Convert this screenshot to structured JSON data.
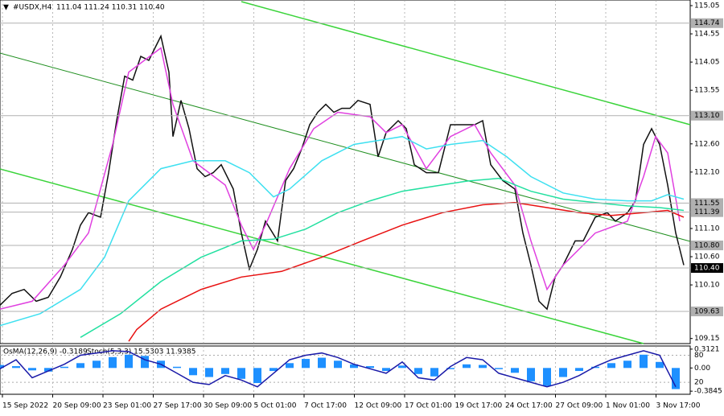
{
  "chart_data": [
    {
      "type": "line",
      "title": "#USDX,H4",
      "subtitle": "111.04 111.24 110.31 110.40",
      "xlim": [
        0,
        171.6
      ],
      "xticks": [
        {
          "value": 0.6,
          "label": "15 Sep 2022"
        },
        {
          "value": 13.1,
          "label": "20 Sep 09:00"
        },
        {
          "value": 25.6,
          "label": "23 Sep 01:00"
        },
        {
          "value": 38.1,
          "label": "27 Sep 17:00"
        },
        {
          "value": 50.6,
          "label": "30 Sep 09:00"
        },
        {
          "value": 63.1,
          "label": "5 Oct 01:00"
        },
        {
          "value": 75.6,
          "label": "7 Oct 17:00"
        },
        {
          "value": 88.1,
          "label": "12 Oct 09:00"
        },
        {
          "value": 100.6,
          "label": "17 Oct 01:00"
        },
        {
          "value": 113.1,
          "label": "19 Oct 17:00"
        },
        {
          "value": 125.6,
          "label": "24 Oct 17:00"
        },
        {
          "value": 138.1,
          "label": "27 Oct 09:00"
        },
        {
          "value": 150.6,
          "label": "1 Nov 01:00"
        },
        {
          "value": 163.1,
          "label": "3 Nov 17:00"
        }
      ],
      "grid": true,
      "ylim": [
        109.06,
        115.15
      ],
      "yticks": [
        115.05,
        114.55,
        114.05,
        113.55,
        {
          "value": 112.6,
          "label": "112.60"
        },
        {
          "value": 112.1,
          "label": "112.10"
        },
        {
          "value": 111.1,
          "label": "111.10"
        },
        {
          "value": 110.6,
          "label": "110.60"
        },
        {
          "value": 110.1,
          "label": "110.10"
        },
        109.15
      ],
      "levels": [
        114.74,
        {
          "value": 113.1,
          "label": "113.10"
        },
        111.55,
        111.39,
        {
          "value": 110.8,
          "label": "110.80"
        },
        {
          "value": 110.4,
          "label": "110.40"
        },
        109.63
      ],
      "level_color": "#b0b0b0",
      "series": [
        {
          "color": "#111111",
          "x": [
            0,
            3,
            6,
            9,
            12,
            15,
            18,
            20,
            22,
            25,
            27,
            29,
            31,
            33,
            35,
            37,
            40,
            42,
            43,
            45,
            47,
            49,
            51,
            53,
            55,
            58,
            60,
            62,
            64,
            66,
            69,
            71,
            73,
            75,
            77,
            79,
            81,
            83,
            85,
            87,
            89,
            92,
            94,
            96,
            99,
            101,
            103,
            106,
            109,
            112,
            115,
            118,
            120,
            122,
            125,
            128,
            130,
            132,
            134,
            136,
            138,
            140,
            143,
            145,
            148,
            151,
            153,
            156,
            158,
            160,
            162,
            164,
            166,
            168,
            170
          ],
          "values": [
            109.74,
            109.95,
            110.02,
            109.81,
            109.88,
            110.24,
            110.73,
            111.16,
            111.38,
            111.3,
            112.09,
            113.01,
            113.8,
            113.73,
            114.15,
            114.08,
            114.51,
            113.87,
            112.73,
            113.37,
            112.87,
            112.16,
            112.02,
            112.09,
            112.23,
            111.8,
            111.02,
            110.38,
            110.73,
            111.23,
            110.88,
            111.95,
            112.16,
            112.51,
            112.94,
            113.16,
            113.3,
            113.16,
            113.23,
            113.23,
            113.37,
            113.3,
            112.37,
            112.8,
            113.01,
            112.87,
            112.23,
            112.09,
            112.09,
            112.94,
            112.94,
            112.94,
            113.01,
            112.23,
            111.95,
            111.8,
            111.02,
            110.45,
            109.81,
            109.67,
            110.24,
            110.45,
            110.88,
            110.88,
            111.3,
            111.38,
            111.23,
            111.38,
            111.59,
            112.59,
            112.87,
            112.59,
            111.87,
            111.02,
            110.45
          ]
        },
        {
          "color": "#e040e0",
          "x": [
            0,
            8,
            16,
            22,
            28,
            32,
            40,
            43,
            48,
            56,
            60,
            63,
            66,
            72,
            78,
            84,
            92,
            96,
            100,
            106,
            112,
            118,
            122,
            128,
            132,
            136,
            140,
            148,
            156,
            160,
            163,
            166,
            169
          ],
          "values": [
            109.67,
            109.81,
            110.45,
            111.02,
            112.59,
            113.87,
            114.3,
            113.3,
            112.3,
            111.87,
            111.16,
            110.73,
            111.16,
            112.16,
            112.87,
            113.16,
            113.08,
            112.8,
            112.94,
            112.16,
            112.73,
            112.94,
            112.44,
            111.87,
            110.88,
            110.02,
            110.45,
            111.02,
            111.23,
            112.02,
            112.73,
            112.44,
            111.23
          ]
        },
        {
          "color": "#3ee0f0",
          "x": [
            0,
            10,
            20,
            26,
            32,
            40,
            48,
            56,
            62,
            68,
            72,
            80,
            88,
            94,
            100,
            106,
            112,
            120,
            126,
            132,
            140,
            148,
            156,
            162,
            166,
            170
          ],
          "values": [
            109.38,
            109.59,
            110.02,
            110.59,
            111.59,
            112.16,
            112.3,
            112.3,
            112.09,
            111.66,
            111.8,
            112.3,
            112.59,
            112.66,
            112.73,
            112.51,
            112.59,
            112.66,
            112.37,
            112.02,
            111.73,
            111.62,
            111.59,
            111.59,
            111.7,
            111.62
          ]
        },
        {
          "color": "#22e0a0",
          "x": [
            20,
            30,
            40,
            50,
            60,
            68,
            76,
            84,
            92,
            100,
            108,
            116,
            124,
            132,
            140,
            148,
            156,
            164,
            170
          ],
          "values": [
            109.17,
            109.59,
            110.16,
            110.59,
            110.88,
            110.91,
            111.09,
            111.38,
            111.59,
            111.76,
            111.85,
            111.94,
            111.99,
            111.76,
            111.62,
            111.56,
            111.5,
            111.47,
            111.42
          ]
        },
        {
          "color": "#e81010",
          "x": [
            32,
            34,
            40,
            50,
            60,
            70,
            80,
            90,
            100,
            110,
            120,
            128,
            136,
            144,
            152,
            160,
            166,
            170
          ],
          "values": [
            109.1,
            109.31,
            109.67,
            110.02,
            110.24,
            110.34,
            110.59,
            110.88,
            111.16,
            111.38,
            111.52,
            111.56,
            111.47,
            111.38,
            111.33,
            111.38,
            111.42,
            111.3
          ]
        }
      ]
    },
    {
      "type": "bar",
      "title": "OsMA(12,26,9) -0.3189",
      "subtitle": "Stoch(5,3,3) 15.5303 11.9385",
      "xlim": [
        0,
        171.6
      ],
      "ylim": [
        -0.436,
        0.364
      ],
      "yticks": [
        0.3121,
        {
          "value": 0,
          "label": "0.00"
        },
        -0.3845
      ],
      "y2lim": [
        -6.5,
        100.5
      ],
      "y2ticks": [
        80,
        20
      ],
      "color": "#1e90ff",
      "x": [
        0,
        4,
        8,
        12,
        16,
        20,
        24,
        28,
        32,
        36,
        40,
        44,
        48,
        52,
        56,
        60,
        64,
        68,
        72,
        76,
        80,
        84,
        88,
        92,
        96,
        100,
        104,
        108,
        112,
        116,
        120,
        124,
        128,
        132,
        136,
        140,
        144,
        148,
        152,
        156,
        160,
        164,
        168
      ],
      "values": [
        0.05,
        0.03,
        -0.04,
        -0.06,
        0.02,
        0.08,
        0.12,
        0.18,
        0.22,
        0.2,
        0.12,
        0.02,
        -0.12,
        -0.15,
        -0.1,
        -0.18,
        -0.25,
        -0.05,
        0.08,
        0.15,
        0.17,
        0.12,
        0.06,
        0.03,
        -0.05,
        0.04,
        -0.1,
        -0.14,
        -0.02,
        0.06,
        0.05,
        -0.02,
        -0.08,
        -0.22,
        -0.3,
        -0.15,
        -0.05,
        0.02,
        0.08,
        0.12,
        0.22,
        0.1,
        -0.35
      ],
      "series": [
        {
          "color": "#1a1aa8",
          "axis": "y2",
          "values": [
            50,
            70,
            30,
            45,
            60,
            80,
            85,
            90,
            88,
            70,
            60,
            40,
            20,
            15,
            35,
            25,
            10,
            40,
            70,
            80,
            85,
            75,
            60,
            50,
            40,
            65,
            30,
            25,
            55,
            75,
            70,
            40,
            30,
            20,
            10,
            20,
            35,
            55,
            70,
            80,
            90,
            80,
            10
          ]
        }
      ]
    }
  ]
}
